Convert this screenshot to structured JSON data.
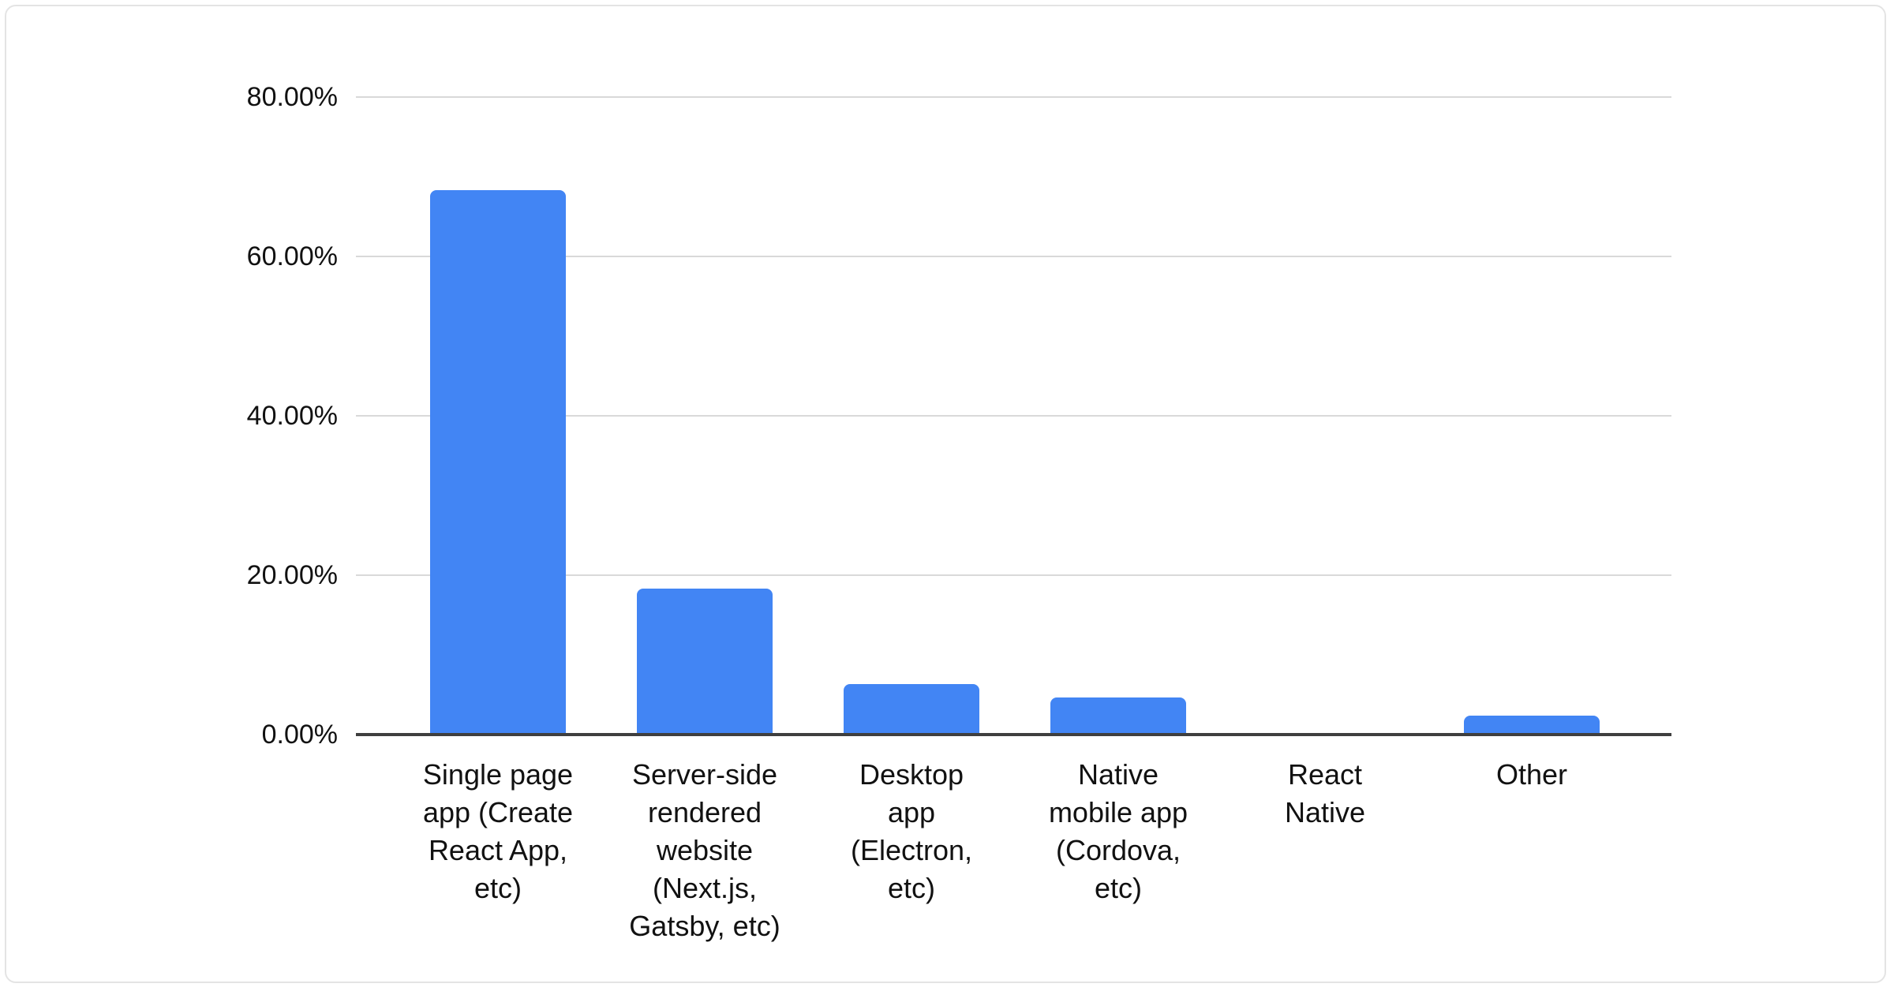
{
  "chart_data": {
    "type": "bar",
    "title": "",
    "xlabel": "",
    "ylabel": "",
    "legend": "none",
    "grid": "on",
    "unit": "%",
    "categories": [
      "Single page app (Create React App, etc)",
      "Server-side rendered website (Next.js, Gatsby, etc)",
      "Desktop app (Electron, etc)",
      "Native mobile app (Cordova, etc)",
      "React Native",
      "Other"
    ],
    "x_labels_wrapped": [
      "Single page\napp (Create\nReact App,\netc)",
      "Server-side\nrendered\nwebsite\n(Next.js,\nGatsby, etc)",
      "Desktop\napp\n(Electron,\netc)",
      "Native\nmobile app\n(Cordova,\netc)",
      "React\nNative",
      "Other"
    ],
    "values": [
      68.3,
      18.3,
      6.3,
      4.7,
      0,
      2.4
    ],
    "ylim": [
      0,
      80
    ],
    "y_tick_values": [
      0,
      20,
      40,
      60,
      80
    ],
    "y_tick_labels": [
      "0.00%",
      "20.00%",
      "40.00%",
      "60.00%",
      "80.00%"
    ],
    "colors": {
      "bar": "#4285F4",
      "gridline": "#d9d9d9",
      "axis_line": "#3f3f3f",
      "text": "#111111",
      "card_border": "#e4e4e4",
      "background": "#ffffff"
    }
  }
}
